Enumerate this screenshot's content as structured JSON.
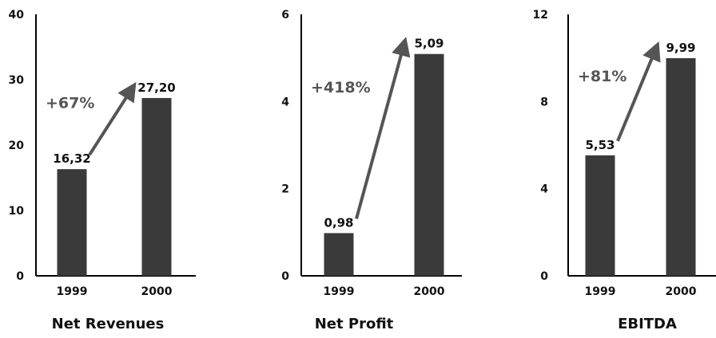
{
  "colors": {
    "bar": "#3a3a3a",
    "axis": "#000000",
    "arrow": "#555555",
    "growth_text": "#555555"
  },
  "chart_data": [
    {
      "type": "bar",
      "title": "Net Revenues",
      "categories": [
        "1999",
        "2000"
      ],
      "values": [
        16.32,
        27.2
      ],
      "value_labels": [
        "16,32",
        "27,20"
      ],
      "ylim": [
        0,
        40
      ],
      "yticks": [
        0,
        10,
        20,
        30,
        40
      ],
      "ytick_labels": [
        "0",
        "10",
        "20",
        "30",
        "40"
      ],
      "growth_label": "+67%",
      "grid": false
    },
    {
      "type": "bar",
      "title": "Net Profit",
      "categories": [
        "1999",
        "2000"
      ],
      "values": [
        0.98,
        5.09
      ],
      "value_labels": [
        "0,98",
        "5,09"
      ],
      "ylim": [
        0,
        6
      ],
      "yticks": [
        0,
        2,
        4,
        6
      ],
      "ytick_labels": [
        "0",
        "2",
        "4",
        "6"
      ],
      "growth_label": "+418%",
      "grid": false
    },
    {
      "type": "bar",
      "title": "EBITDA",
      "categories": [
        "1999",
        "2000"
      ],
      "values": [
        5.53,
        9.99
      ],
      "value_labels": [
        "5,53",
        "9,99"
      ],
      "ylim": [
        0,
        12
      ],
      "yticks": [
        0,
        4,
        8,
        12
      ],
      "ytick_labels": [
        "0",
        "4",
        "8",
        "12"
      ],
      "growth_label": "+81%",
      "grid": false
    }
  ]
}
